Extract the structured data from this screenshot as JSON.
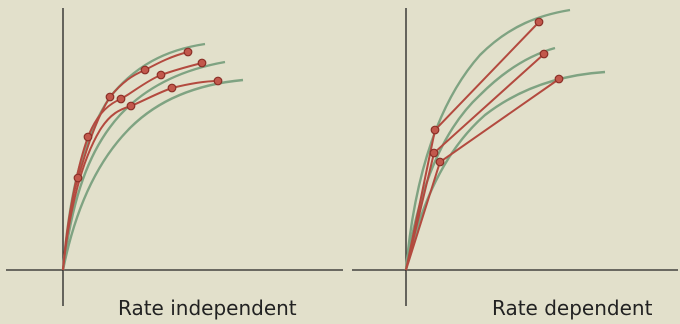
{
  "panels": {
    "left": {
      "caption": "Rate independent"
    },
    "right": {
      "caption": "Rate dependent"
    }
  },
  "colors": {
    "background": "#e2e0cb",
    "axis": "#222222",
    "green_curve": "#7fa382",
    "red_curve": "#b34a3f",
    "point_fill": "#c2584c",
    "point_stroke": "#8a2f27"
  }
}
